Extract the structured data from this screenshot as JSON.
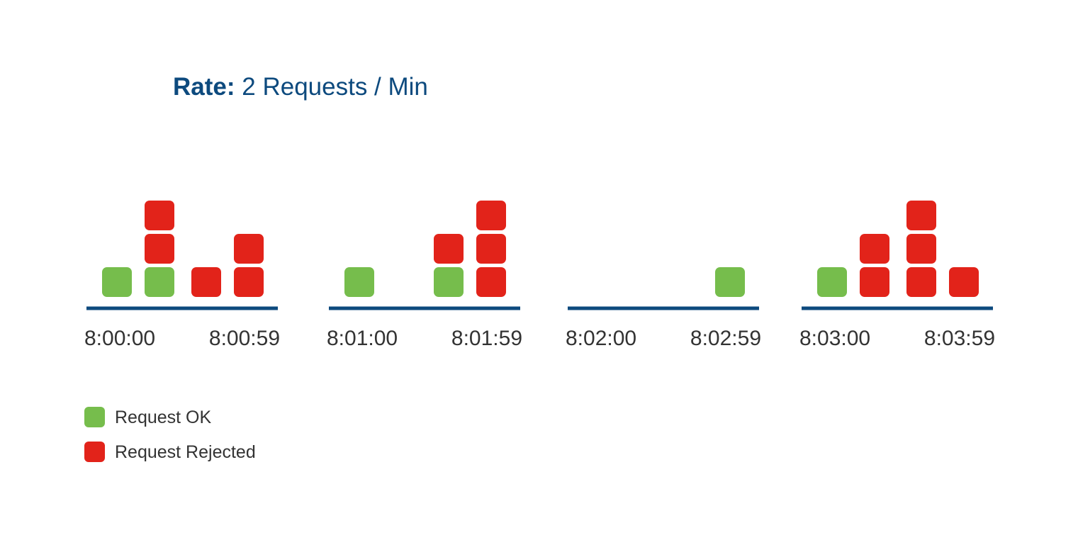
{
  "title": {
    "key": "Rate:",
    "value": "2 Requests / Min"
  },
  "colors": {
    "ok": "#76bd4c",
    "rejected": "#e2231a",
    "axis": "#0d4a7e",
    "title": "#0d4a7e",
    "text": "#333333"
  },
  "windows": [
    {
      "start_label": "8:00:00",
      "end_label": "8:00:59",
      "columns": [
        [
          "ok"
        ],
        [
          "ok",
          "rejected",
          "rejected"
        ],
        [
          "rejected"
        ],
        [
          "rejected",
          "rejected"
        ]
      ]
    },
    {
      "start_label": "8:01:00",
      "end_label": "8:01:59",
      "columns": [
        [
          "ok"
        ],
        [],
        [
          "ok",
          "rejected"
        ],
        [
          "rejected",
          "rejected",
          "rejected"
        ]
      ]
    },
    {
      "start_label": "8:02:00",
      "end_label": "8:02:59",
      "columns": [
        [],
        [],
        [],
        [
          "ok"
        ]
      ]
    },
    {
      "start_label": "8:03:00",
      "end_label": "8:03:59",
      "columns": [
        [
          "ok"
        ],
        [
          "rejected",
          "rejected"
        ],
        [
          "rejected",
          "rejected",
          "rejected"
        ],
        [
          "rejected"
        ]
      ]
    }
  ],
  "legend": {
    "ok_label": "Request OK",
    "rejected_label": "Request Rejected"
  }
}
